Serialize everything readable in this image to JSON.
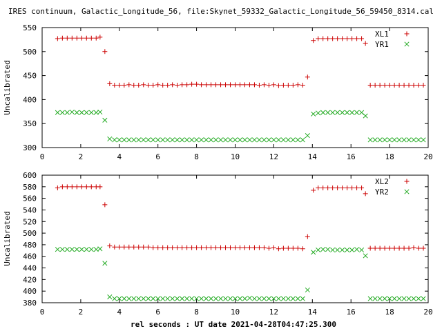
{
  "title": "IRES continuum, Galactic_Longitude_56, file:Skynet_59332_Galactic_Longitude_56_59450_8314.cal",
  "xlabel": "rel seconds : UT date 2021-04-28T04:47:25.300",
  "colors": {
    "red": "#cc0000",
    "green": "#22aa22",
    "axes": "#000000"
  },
  "chart_data": [
    {
      "type": "scatter",
      "ylabel": "Uncalibrated",
      "xlim": [
        0,
        20
      ],
      "ylim": [
        300,
        550
      ],
      "xticks": [
        "0",
        "2",
        "4",
        "6",
        "8",
        "10",
        "12",
        "14",
        "16",
        "18",
        "20"
      ],
      "yticks": [
        "300",
        "350",
        "400",
        "450",
        "500",
        "550"
      ],
      "xtick_values": [
        0,
        2,
        4,
        6,
        8,
        10,
        12,
        14,
        16,
        18,
        20
      ],
      "ytick_values": [
        300,
        350,
        400,
        450,
        500,
        550
      ],
      "legend_position": "top-right",
      "series": [
        {
          "name": "XL1",
          "marker": "plus",
          "color": "#cc0000",
          "x": [
            0.8,
            1.05,
            1.3,
            1.55,
            1.8,
            2.05,
            2.3,
            2.55,
            2.8,
            3.0,
            3.25,
            3.5,
            3.75,
            4.0,
            4.25,
            4.5,
            4.75,
            5.0,
            5.25,
            5.5,
            5.75,
            6.0,
            6.25,
            6.5,
            6.75,
            7.0,
            7.25,
            7.5,
            7.75,
            8.0,
            8.25,
            8.5,
            8.75,
            9.0,
            9.25,
            9.5,
            9.75,
            10.0,
            10.25,
            10.5,
            10.75,
            11.0,
            11.25,
            11.5,
            11.75,
            12.0,
            12.25,
            12.5,
            12.75,
            13.0,
            13.25,
            13.5,
            13.75,
            14.05,
            14.3,
            14.55,
            14.8,
            15.05,
            15.3,
            15.55,
            15.8,
            16.05,
            16.3,
            16.55,
            16.75,
            17.0,
            17.25,
            17.5,
            17.75,
            18.0,
            18.25,
            18.5,
            18.75,
            19.0,
            19.25,
            19.5,
            19.75
          ],
          "y": [
            527,
            528,
            528,
            528,
            528,
            528,
            528,
            528,
            528,
            530,
            500,
            433,
            430,
            430,
            430,
            431,
            430,
            430,
            431,
            430,
            430,
            431,
            430,
            430,
            431,
            430,
            431,
            431,
            432,
            432,
            431,
            431,
            431,
            431,
            431,
            431,
            431,
            431,
            431,
            431,
            431,
            431,
            430,
            431,
            430,
            431,
            429,
            430,
            430,
            430,
            431,
            430,
            447,
            523,
            527,
            527,
            527,
            527,
            527,
            527,
            527,
            527,
            527,
            527,
            517,
            430,
            430,
            430,
            430,
            430,
            430,
            430,
            430,
            430,
            430,
            430,
            430
          ]
        },
        {
          "name": "YR1",
          "marker": "cross",
          "color": "#22aa22",
          "x": [
            0.8,
            1.05,
            1.3,
            1.55,
            1.8,
            2.05,
            2.3,
            2.55,
            2.8,
            3.0,
            3.25,
            3.5,
            3.75,
            4.0,
            4.25,
            4.5,
            4.75,
            5.0,
            5.25,
            5.5,
            5.75,
            6.0,
            6.25,
            6.5,
            6.75,
            7.0,
            7.25,
            7.5,
            7.75,
            8.0,
            8.25,
            8.5,
            8.75,
            9.0,
            9.25,
            9.5,
            9.75,
            10.0,
            10.25,
            10.5,
            10.75,
            11.0,
            11.25,
            11.5,
            11.75,
            12.0,
            12.25,
            12.5,
            12.75,
            13.0,
            13.25,
            13.5,
            13.75,
            14.05,
            14.3,
            14.55,
            14.8,
            15.05,
            15.3,
            15.55,
            15.8,
            16.05,
            16.3,
            16.55,
            16.75,
            17.0,
            17.25,
            17.5,
            17.75,
            18.0,
            18.25,
            18.5,
            18.75,
            19.0,
            19.25,
            19.5,
            19.75
          ],
          "y": [
            373,
            373,
            373,
            374,
            373,
            373,
            373,
            373,
            373,
            374,
            357,
            318,
            316,
            316,
            316,
            316,
            316,
            316,
            316,
            316,
            316,
            316,
            316,
            316,
            316,
            316,
            316,
            316,
            316,
            316,
            316,
            316,
            316,
            316,
            316,
            316,
            316,
            316,
            316,
            316,
            316,
            316,
            316,
            316,
            316,
            316,
            316,
            316,
            316,
            316,
            316,
            316,
            325,
            370,
            372,
            373,
            373,
            373,
            373,
            373,
            373,
            373,
            373,
            373,
            366,
            316,
            316,
            316,
            316,
            316,
            316,
            316,
            316,
            316,
            316,
            316,
            316
          ]
        }
      ]
    },
    {
      "type": "scatter",
      "ylabel": "Uncalibrated",
      "xlim": [
        0,
        20
      ],
      "ylim": [
        380,
        600
      ],
      "xticks": [
        "0",
        "2",
        "4",
        "6",
        "8",
        "10",
        "12",
        "14",
        "16",
        "18",
        "20"
      ],
      "yticks": [
        "380",
        "400",
        "420",
        "440",
        "460",
        "480",
        "500",
        "520",
        "540",
        "560",
        "580",
        "600"
      ],
      "xtick_values": [
        0,
        2,
        4,
        6,
        8,
        10,
        12,
        14,
        16,
        18,
        20
      ],
      "ytick_values": [
        380,
        400,
        420,
        440,
        460,
        480,
        500,
        520,
        540,
        560,
        580,
        600
      ],
      "legend_position": "top-right",
      "series": [
        {
          "name": "XL2",
          "marker": "plus",
          "color": "#cc0000",
          "x": [
            0.8,
            1.05,
            1.3,
            1.55,
            1.8,
            2.05,
            2.3,
            2.55,
            2.8,
            3.0,
            3.25,
            3.5,
            3.75,
            4.0,
            4.25,
            4.5,
            4.75,
            5.0,
            5.25,
            5.5,
            5.75,
            6.0,
            6.25,
            6.5,
            6.75,
            7.0,
            7.25,
            7.5,
            7.75,
            8.0,
            8.25,
            8.5,
            8.75,
            9.0,
            9.25,
            9.5,
            9.75,
            10.0,
            10.25,
            10.5,
            10.75,
            11.0,
            11.25,
            11.5,
            11.75,
            12.0,
            12.25,
            12.5,
            12.75,
            13.0,
            13.25,
            13.5,
            13.75,
            14.05,
            14.3,
            14.55,
            14.8,
            15.05,
            15.3,
            15.55,
            15.8,
            16.05,
            16.3,
            16.55,
            16.75,
            17.0,
            17.25,
            17.5,
            17.75,
            18.0,
            18.25,
            18.5,
            18.75,
            19.0,
            19.25,
            19.5,
            19.75
          ],
          "y": [
            578,
            580,
            580,
            580,
            580,
            580,
            580,
            580,
            580,
            580,
            549,
            478,
            476,
            476,
            476,
            476,
            476,
            476,
            476,
            476,
            475,
            475,
            475,
            475,
            475,
            475,
            475,
            475,
            475,
            475,
            475,
            475,
            475,
            475,
            475,
            475,
            475,
            475,
            475,
            475,
            475,
            475,
            475,
            475,
            474,
            475,
            473,
            474,
            474,
            474,
            474,
            473,
            494,
            574,
            578,
            578,
            578,
            578,
            578,
            578,
            578,
            578,
            578,
            578,
            568,
            474,
            474,
            474,
            474,
            474,
            474,
            474,
            474,
            474,
            475,
            474,
            474
          ]
        },
        {
          "name": "YR2",
          "marker": "cross",
          "color": "#22aa22",
          "x": [
            0.8,
            1.05,
            1.3,
            1.55,
            1.8,
            2.05,
            2.3,
            2.55,
            2.8,
            3.0,
            3.25,
            3.5,
            3.75,
            4.0,
            4.25,
            4.5,
            4.75,
            5.0,
            5.25,
            5.5,
            5.75,
            6.0,
            6.25,
            6.5,
            6.75,
            7.0,
            7.25,
            7.5,
            7.75,
            8.0,
            8.25,
            8.5,
            8.75,
            9.0,
            9.25,
            9.5,
            9.75,
            10.0,
            10.25,
            10.5,
            10.75,
            11.0,
            11.25,
            11.5,
            11.75,
            12.0,
            12.25,
            12.5,
            12.75,
            13.0,
            13.25,
            13.5,
            13.75,
            14.05,
            14.3,
            14.55,
            14.8,
            15.05,
            15.3,
            15.55,
            15.8,
            16.05,
            16.3,
            16.55,
            16.75,
            17.0,
            17.25,
            17.5,
            17.75,
            18.0,
            18.25,
            18.5,
            18.75,
            19.0,
            19.25,
            19.5,
            19.75
          ],
          "y": [
            472,
            472,
            472,
            472,
            472,
            472,
            472,
            472,
            472,
            473,
            448,
            390,
            387,
            387,
            387,
            387,
            387,
            387,
            387,
            387,
            387,
            387,
            387,
            387,
            387,
            387,
            387,
            387,
            387,
            387,
            387,
            387,
            387,
            387,
            387,
            387,
            387,
            387,
            387,
            387,
            388,
            387,
            387,
            387,
            387,
            387,
            387,
            387,
            387,
            387,
            387,
            387,
            402,
            467,
            471,
            472,
            472,
            471,
            471,
            471,
            471,
            471,
            472,
            471,
            461,
            387,
            387,
            387,
            387,
            387,
            387,
            387,
            387,
            387,
            387,
            387,
            387
          ]
        }
      ]
    }
  ]
}
